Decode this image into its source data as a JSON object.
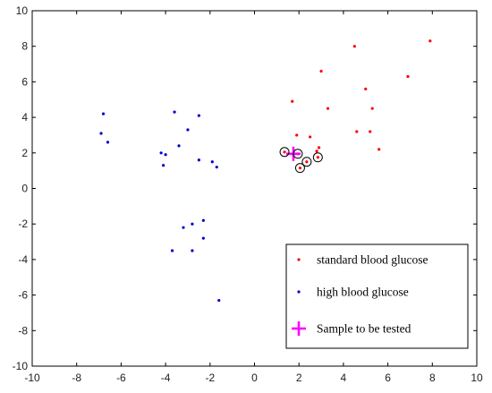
{
  "chart_data": {
    "type": "scatter",
    "title": "",
    "xlabel": "",
    "ylabel": "",
    "xlim": [
      -10,
      10
    ],
    "ylim": [
      -10,
      10
    ],
    "xticks": [
      -10,
      -8,
      -6,
      -4,
      -2,
      0,
      2,
      4,
      6,
      8,
      10
    ],
    "yticks": [
      -10,
      -8,
      -6,
      -4,
      -2,
      0,
      2,
      4,
      6,
      8,
      10
    ],
    "grid": false,
    "legend_position": "bottom-right",
    "series": [
      {
        "name": "standard blood glucose",
        "color": "#ff0000",
        "marker": "dot",
        "points": [
          [
            7.9,
            8.3
          ],
          [
            4.5,
            8.0
          ],
          [
            3.0,
            6.6
          ],
          [
            6.9,
            6.3
          ],
          [
            5.0,
            5.6
          ],
          [
            1.7,
            4.9
          ],
          [
            3.3,
            4.5
          ],
          [
            5.3,
            4.5
          ],
          [
            1.9,
            3.0
          ],
          [
            2.5,
            2.9
          ],
          [
            4.6,
            3.2
          ],
          [
            5.2,
            3.2
          ],
          [
            5.6,
            2.2
          ],
          [
            2.9,
            2.3
          ],
          [
            2.8,
            2.1
          ],
          [
            1.35,
            2.05
          ],
          [
            1.95,
            1.95
          ],
          [
            2.35,
            1.5
          ],
          [
            2.85,
            1.75
          ],
          [
            2.05,
            1.15
          ]
        ]
      },
      {
        "name": "high blood glucose",
        "color": "#0000cc",
        "marker": "dot",
        "points": [
          [
            -6.8,
            4.2
          ],
          [
            -6.9,
            3.1
          ],
          [
            -6.6,
            2.6
          ],
          [
            -3.6,
            4.3
          ],
          [
            -2.5,
            4.1
          ],
          [
            -3.0,
            3.3
          ],
          [
            -3.4,
            2.4
          ],
          [
            -4.2,
            2.0
          ],
          [
            -4.0,
            1.9
          ],
          [
            -4.1,
            1.3
          ],
          [
            -2.5,
            1.6
          ],
          [
            -1.9,
            1.5
          ],
          [
            -1.7,
            1.2
          ],
          [
            -2.3,
            -1.8
          ],
          [
            -2.8,
            -2.0
          ],
          [
            -3.2,
            -2.2
          ],
          [
            -2.3,
            -2.8
          ],
          [
            -3.7,
            -3.5
          ],
          [
            -2.8,
            -3.5
          ],
          [
            -1.6,
            -6.3
          ]
        ]
      },
      {
        "name": "Sample to be tested",
        "color": "#ff00ff",
        "marker": "plus",
        "points": [
          [
            1.75,
            1.95
          ]
        ]
      }
    ],
    "circled_points": [
      [
        1.35,
        2.05
      ],
      [
        1.95,
        1.95
      ],
      [
        2.35,
        1.5
      ],
      [
        2.85,
        1.75
      ],
      [
        2.05,
        1.15
      ]
    ]
  }
}
